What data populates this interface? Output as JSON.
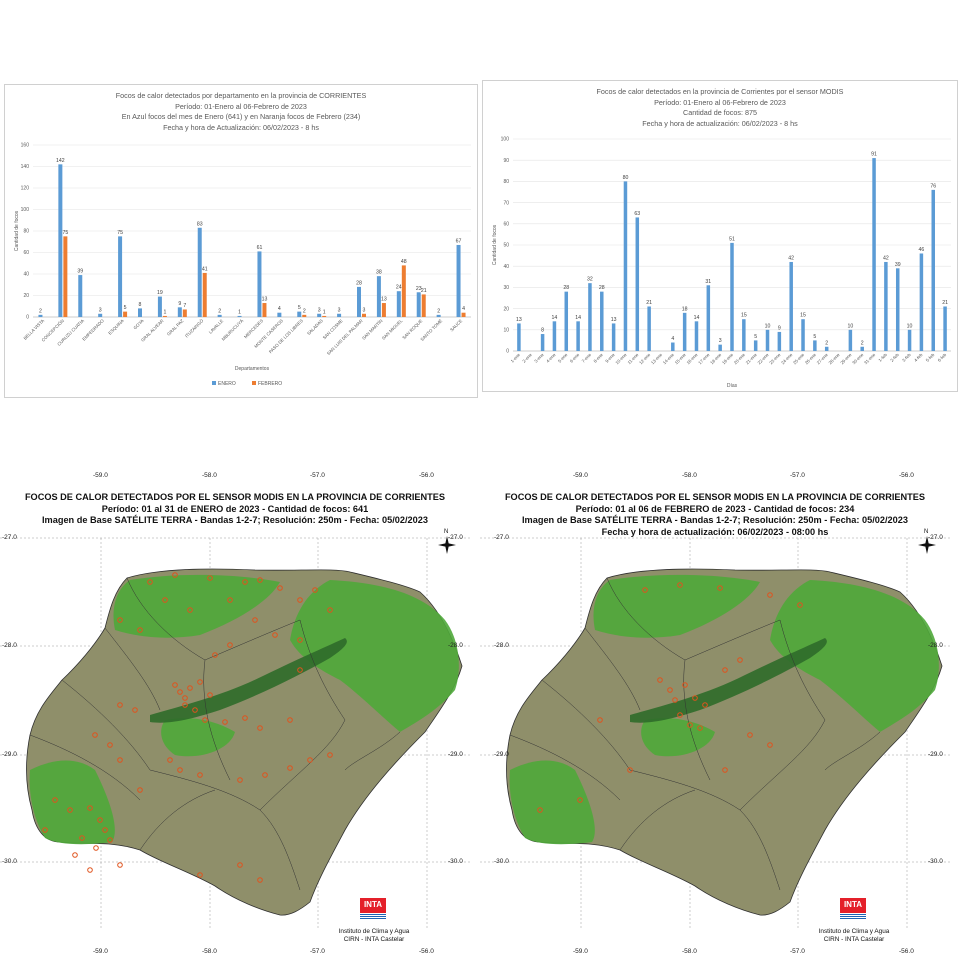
{
  "chart_data": [
    {
      "type": "bar",
      "title": [
        "Focos de calor detectados por departamento en la provincia de CORRIENTES",
        "Período: 01-Enero al 06-Febrero de 2023",
        "En Azul focos del mes de Enero (641) y en Naranja focos de Febrero (234)",
        "Fecha y hora de Actualización: 06/02/2023 - 8 hs"
      ],
      "xlabel": "Departamentos",
      "ylabel": "Cantidad de focos",
      "ylim": [
        0,
        160
      ],
      "yticks": [
        0,
        20,
        40,
        60,
        80,
        100,
        120,
        140,
        160
      ],
      "grid": true,
      "legend_position": "bottom",
      "categories": [
        "BELLA VISTA",
        "CONCEPCIÓN",
        "CURUZU CUATIA",
        "EMPEDRADO",
        "ESQUINA",
        "GOYA",
        "GRAL ALVEAR",
        "GRAL PAZ",
        "ITUZAINGÓ",
        "LAVALLE",
        "MBURUCUYÁ",
        "MERCEDES",
        "MONTE CASEROS",
        "PASO DE LOS LIBRES",
        "SALADAS",
        "SAN COSME",
        "SAN LUIS DEL PALMAR",
        "SAN MARTÍN",
        "SAN MIGUEL",
        "SAN ROQUE",
        "SANTO TOMÉ",
        "SAUCE"
      ],
      "series": [
        {
          "name": "ENERO",
          "color": "#5b9bd5",
          "values": [
            2,
            142,
            39,
            3,
            75,
            8,
            19,
            9,
            83,
            2,
            1,
            61,
            4,
            5,
            3,
            3,
            28,
            38,
            24,
            23,
            2,
            67
          ]
        },
        {
          "name": "FEBRERO",
          "color": "#ed7d31",
          "values": [
            null,
            75,
            null,
            null,
            5,
            null,
            1,
            7,
            41,
            null,
            null,
            13,
            null,
            2,
            1,
            null,
            3,
            13,
            48,
            21,
            null,
            4
          ]
        }
      ]
    },
    {
      "type": "bar",
      "title": [
        "Focos de calor detectados en la provincia de Corrientes por el sensor MODIS",
        "Período: 01-Enero al 06-Febrero de 2023",
        "Cantidad de focos: 875",
        "Fecha y hora de actualización: 06/02/2023 - 8 hs"
      ],
      "xlabel": "Días",
      "ylabel": "Cantidad de focos",
      "ylim": [
        0,
        100
      ],
      "yticks": [
        0,
        10,
        20,
        30,
        40,
        50,
        60,
        70,
        80,
        90,
        100
      ],
      "grid": true,
      "categories": [
        "1-ene",
        "2-ene",
        "3-ene",
        "4-ene",
        "5-ene",
        "6-ene",
        "7-ene",
        "8-ene",
        "9-ene",
        "10-ene",
        "11-ene",
        "12-ene",
        "13-ene",
        "14-ene",
        "15-ene",
        "16-ene",
        "17-ene",
        "18-ene",
        "19-ene",
        "20-ene",
        "21-ene",
        "22-ene",
        "23-ene",
        "24-ene",
        "25-ene",
        "26-ene",
        "27-ene",
        "28-ene",
        "29-ene",
        "30-ene",
        "31-ene",
        "1-feb",
        "2-feb",
        "3-feb",
        "4-feb",
        "5-feb",
        "6-feb"
      ],
      "series": [
        {
          "color": "#5b9bd5",
          "values": [
            13,
            null,
            8,
            14,
            28,
            14,
            32,
            28,
            13,
            80,
            63,
            21,
            null,
            4,
            18,
            14,
            31,
            3,
            51,
            15,
            5,
            10,
            9,
            42,
            15,
            5,
            2,
            null,
            10,
            2,
            91,
            42,
            39,
            10,
            46,
            76,
            21
          ]
        }
      ]
    }
  ],
  "maps": [
    {
      "title": [
        "FOCOS DE CALOR DETECTADOS POR EL SENSOR MODIS EN LA PROVINCIA DE CORRIENTES",
        "Período: 01 al 31 de ENERO de 2023 - Cantidad de focos: 641",
        "Imagen de Base SATÉLITE TERRA - Bandas 1-2-7; Resolución: 250m - Fecha: 05/02/2023"
      ]
    },
    {
      "title": [
        "FOCOS DE CALOR DETECTADOS POR EL SENSOR MODIS EN LA PROVINCIA DE CORRIENTES",
        "Período: 01 al 06 de FEBRERO de 2023 - Cantidad de focos: 234",
        "Imagen de Base SATÉLITE TERRA - Bandas 1-2-7; Resolución: 250m - Fecha: 05/02/2023",
        "Fecha y hora de actualización: 06/02/2023 - 08:00 hs"
      ]
    }
  ],
  "map_common": {
    "lon_labels": [
      "-59.0",
      "-58.0",
      "-57.0",
      "-56.0"
    ],
    "lat_labels": [
      "-27.0",
      "-28.0",
      "-29.0",
      "-30.0"
    ],
    "north": "N",
    "logo": "INTA",
    "institution": [
      "Instituto de Clima y Agua",
      "CIRN - INTA Castelar"
    ],
    "colors": {
      "land_green": "#4fa83a",
      "land_brown": "#8f8f6a",
      "fire": "#e0531d"
    }
  }
}
